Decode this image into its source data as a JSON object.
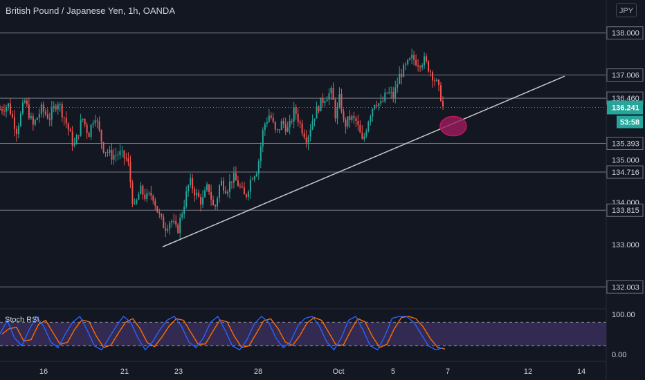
{
  "header": {
    "title": "British Pound / Japanese Yen, 1h, OANDA",
    "currency_button": "JPY"
  },
  "oscillator": {
    "label": "Stoch RSI",
    "axis_labels": [
      "100.00",
      "0.00"
    ]
  },
  "colors": {
    "background": "#131722",
    "up": "#26a69a",
    "down": "#ef5350",
    "hline": "#d1d4dc",
    "trendline": "#c8c8c8",
    "highlight": "#9c1b5e",
    "last_price_bg": "#26a69a",
    "stoch_k": "#2962ff",
    "stoch_d": "#ff6d00",
    "osc_band": "#7e57c2"
  },
  "chart_data": {
    "type": "candlestick",
    "instrument": "British Pound / Japanese Yen",
    "timeframe": "1h",
    "source": "OANDA",
    "y_axis_ticks": [
      "138.000",
      "137.006",
      "136.460",
      "136.241",
      "135.393",
      "135.000",
      "134.716",
      "134.000",
      "133.815",
      "133.000",
      "132.003"
    ],
    "y_range": [
      131.6,
      138.55
    ],
    "horizontal_levels": [
      138.0,
      137.006,
      136.46,
      135.393,
      134.716,
      133.815,
      132.003
    ],
    "last_price": "136.241",
    "countdown": "53:58",
    "x_ticks": [
      "16",
      "21",
      "23",
      "28",
      "Oct",
      "5",
      "7",
      "12",
      "14"
    ],
    "trendline": {
      "from": [
        "Sep 22",
        132.95
      ],
      "to": [
        "Oct 13",
        136.98
      ]
    },
    "highlight": {
      "center": [
        "Oct 7",
        135.8
      ]
    },
    "price_path": [
      {
        "t": 0,
        "p": 136.2
      },
      {
        "t": 0.8,
        "p": 136.3
      },
      {
        "t": 1.6,
        "p": 135.7
      },
      {
        "t": 2.4,
        "p": 136.4
      },
      {
        "t": 3.2,
        "p": 135.8
      },
      {
        "t": 4.0,
        "p": 136.2
      },
      {
        "t": 4.8,
        "p": 136.0
      },
      {
        "t": 5.6,
        "p": 136.4
      },
      {
        "t": 6.4,
        "p": 135.9
      },
      {
        "t": 7.2,
        "p": 135.3
      },
      {
        "t": 8.0,
        "p": 136.0
      },
      {
        "t": 8.6,
        "p": 135.6
      },
      {
        "t": 9.2,
        "p": 136.1
      },
      {
        "t": 10.0,
        "p": 135.3
      },
      {
        "t": 10.8,
        "p": 135.1
      },
      {
        "t": 11.6,
        "p": 135.15
      },
      {
        "t": 12.4,
        "p": 135.0
      },
      {
        "t": 13.0,
        "p": 133.8
      },
      {
        "t": 13.6,
        "p": 134.3
      },
      {
        "t": 14.2,
        "p": 134.1
      },
      {
        "t": 14.8,
        "p": 134.2
      },
      {
        "t": 15.4,
        "p": 133.7
      },
      {
        "t": 16.0,
        "p": 133.4
      },
      {
        "t": 16.6,
        "p": 133.6
      },
      {
        "t": 17.2,
        "p": 133.3
      },
      {
        "t": 17.8,
        "p": 133.9
      },
      {
        "t": 18.4,
        "p": 134.5
      },
      {
        "t": 19.0,
        "p": 134.2
      },
      {
        "t": 19.6,
        "p": 134.0
      },
      {
        "t": 20.2,
        "p": 134.4
      },
      {
        "t": 20.8,
        "p": 133.8
      },
      {
        "t": 21.4,
        "p": 134.5
      },
      {
        "t": 22.0,
        "p": 134.3
      },
      {
        "t": 22.6,
        "p": 134.6
      },
      {
        "t": 23.2,
        "p": 134.4
      },
      {
        "t": 23.8,
        "p": 134.1
      },
      {
        "t": 24.4,
        "p": 134.6
      },
      {
        "t": 25.0,
        "p": 134.8
      },
      {
        "t": 25.6,
        "p": 135.8
      },
      {
        "t": 26.2,
        "p": 136.1
      },
      {
        "t": 26.8,
        "p": 135.6
      },
      {
        "t": 27.4,
        "p": 135.9
      },
      {
        "t": 28.0,
        "p": 135.7
      },
      {
        "t": 28.6,
        "p": 136.2
      },
      {
        "t": 29.2,
        "p": 135.8
      },
      {
        "t": 29.8,
        "p": 135.5
      },
      {
        "t": 30.4,
        "p": 136.0
      },
      {
        "t": 31.0,
        "p": 136.3
      },
      {
        "t": 31.6,
        "p": 136.5
      },
      {
        "t": 32.2,
        "p": 136.6
      },
      {
        "t": 32.6,
        "p": 136.0
      },
      {
        "t": 33.0,
        "p": 136.5
      },
      {
        "t": 33.4,
        "p": 135.8
      },
      {
        "t": 34.0,
        "p": 136.0
      },
      {
        "t": 34.6,
        "p": 135.9
      },
      {
        "t": 35.2,
        "p": 135.4
      },
      {
        "t": 35.8,
        "p": 136.0
      },
      {
        "t": 36.4,
        "p": 136.4
      },
      {
        "t": 37.0,
        "p": 136.3
      },
      {
        "t": 37.6,
        "p": 136.6
      },
      {
        "t": 38.2,
        "p": 136.5
      },
      {
        "t": 38.8,
        "p": 137.0
      },
      {
        "t": 39.4,
        "p": 137.2
      },
      {
        "t": 40.0,
        "p": 137.4
      },
      {
        "t": 40.6,
        "p": 137.3
      },
      {
        "t": 41.2,
        "p": 137.35
      },
      {
        "t": 41.8,
        "p": 137.1
      },
      {
        "t": 42.4,
        "p": 136.8
      },
      {
        "t": 42.8,
        "p": 136.5
      },
      {
        "t": 43.0,
        "p": 136.24
      }
    ],
    "stoch_rsi_k_path": [
      50,
      85,
      40,
      20,
      60,
      95,
      70,
      30,
      15,
      50,
      80,
      95,
      60,
      20,
      10,
      40,
      70,
      95,
      80,
      40,
      10,
      30,
      60,
      85,
      95,
      70,
      30,
      15,
      40,
      80,
      95,
      60,
      20,
      10,
      35,
      75,
      95,
      80,
      40,
      15,
      30,
      70,
      90,
      95,
      70,
      30,
      10,
      40,
      85,
      95,
      60,
      20,
      10,
      45,
      90,
      95,
      95,
      80,
      50,
      20,
      10,
      15
    ]
  }
}
